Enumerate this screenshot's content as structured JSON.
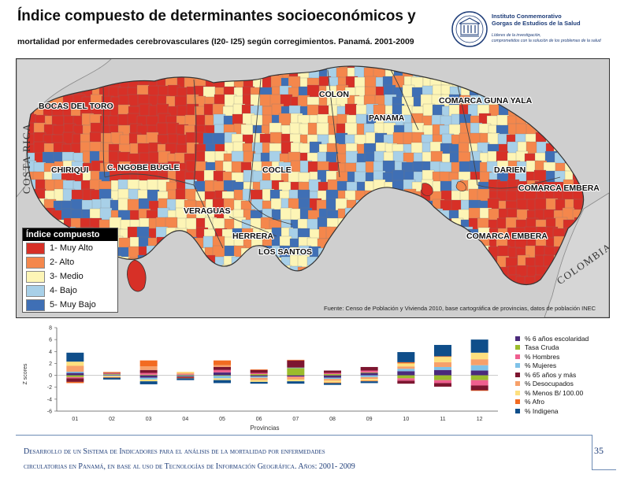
{
  "header": {
    "title": "Índice compuesto de determinantes socioeconómicos y",
    "subtitle": "mortalidad por enfermedades cerebrovasculares (I20- I25) según corregimientos. Panamá. 2001-2009"
  },
  "institution": {
    "name_line1": "Instituto Conmemorativo",
    "name_line2": "Gorgas de Estudios de la Salud",
    "tagline_line1": "Líderes de la investigación,",
    "tagline_line2": "comprometidos con la solución de los problemas de la salud"
  },
  "map": {
    "labels": [
      "BOCAS DEL TORO",
      "COLON",
      "COMARCA GUNA YALA",
      "PANAMA",
      "CHIRIQUI",
      "C. NGOBE BUGLE",
      "COCLE",
      "DARIEN",
      "COMARCA EMBERA",
      "VERAGUAS",
      "HERRERA",
      "LOS SANTOS",
      "COMARCA EMBERA"
    ],
    "countries": [
      "COSTA RICA",
      "COLOMBIA"
    ],
    "source": "Fuente: Censo de Población y Vivienda 2010, base cartográfica de provincias, datos de población INEC"
  },
  "legend": {
    "title": "Índice compuesto",
    "items": [
      {
        "label": "1- Muy Alto",
        "color": "#d73027"
      },
      {
        "label": "2- Alto",
        "color": "#f4874c"
      },
      {
        "label": "3- Medio",
        "color": "#fdf5b6"
      },
      {
        "label": "4- Bajo",
        "color": "#a8d0e8"
      },
      {
        "label": "5- Muy Bajo",
        "color": "#3f6fb5"
      }
    ]
  },
  "chart_data": {
    "type": "bar",
    "stacked": true,
    "xlabel": "Provincias",
    "ylabel": "Z scores",
    "ylim": [
      -6,
      8
    ],
    "yticks": [
      8,
      6,
      4,
      2,
      0,
      -2,
      -4,
      -6
    ],
    "categories": [
      "01",
      "02",
      "03",
      "04",
      "05",
      "06",
      "07",
      "08",
      "09",
      "10",
      "11",
      "12"
    ],
    "legend_position": "right",
    "series": [
      {
        "name": "% 6 años escolaridad",
        "color": "#4b2a7b",
        "values": [
          0.4,
          0.1,
          -0.4,
          -0.1,
          0.5,
          -0.2,
          -0.2,
          -0.4,
          0.4,
          0.7,
          0.9,
          0.8
        ]
      },
      {
        "name": "Tasa Cruda",
        "color": "#9cbc2c",
        "values": [
          -0.3,
          0.1,
          0.1,
          0.1,
          -0.1,
          0.2,
          1.2,
          0.2,
          0.1,
          -0.5,
          -0.8,
          -0.8
        ]
      },
      {
        "name": "% Hombres",
        "color": "#ef5f8f",
        "values": [
          -0.2,
          0.1,
          0.3,
          0.1,
          0.4,
          0.2,
          -0.1,
          0.2,
          0.3,
          -0.4,
          -0.5,
          -0.9
        ]
      },
      {
        "name": "% Mujeres",
        "color": "#7fc2e8",
        "values": [
          0.2,
          -0.1,
          -0.3,
          -0.1,
          -0.4,
          -0.2,
          0.1,
          -0.2,
          -0.3,
          0.4,
          0.5,
          0.9
        ]
      },
      {
        "name": "% 65 años y más",
        "color": "#7d1630",
        "values": [
          -0.6,
          0.1,
          0.5,
          -0.2,
          0.5,
          0.5,
          1.2,
          0.4,
          0.6,
          -0.5,
          -0.6,
          -0.8
        ]
      },
      {
        "name": "% Desocupados",
        "color": "#f7a06a",
        "values": [
          1.0,
          0.2,
          0.6,
          0.2,
          0.3,
          -0.4,
          -0.4,
          -0.3,
          -0.3,
          0.4,
          0.8,
          1.0
        ]
      },
      {
        "name": "% Menos B/ 100.00",
        "color": "#fde07f",
        "values": [
          0.7,
          -0.2,
          -0.3,
          0.2,
          -0.3,
          -0.3,
          -0.3,
          -0.3,
          -0.3,
          0.5,
          0.9,
          1.1
        ]
      },
      {
        "name": "% Afro",
        "color": "#f26b21",
        "values": [
          -0.2,
          -0.1,
          1.0,
          -0.1,
          0.8,
          0.1,
          0.1,
          -0.1,
          -0.1,
          0.2,
          0.1,
          -0.1
        ]
      },
      {
        "name": "% Indigena",
        "color": "#0f4e8a",
        "values": [
          1.5,
          -0.3,
          -0.5,
          -0.3,
          -0.5,
          -0.3,
          -0.4,
          -0.3,
          -0.3,
          1.7,
          1.9,
          2.2
        ]
      }
    ]
  },
  "footer": {
    "line1": "Desarrollo de un Sistema de Indicadores para el análisis de la mortalidad por enfermedades",
    "line2": "circulatorias en Panamá, en base al uso de Tecnologías de Información Geográfica. Años: 2001- 2009",
    "page_number": "35"
  }
}
